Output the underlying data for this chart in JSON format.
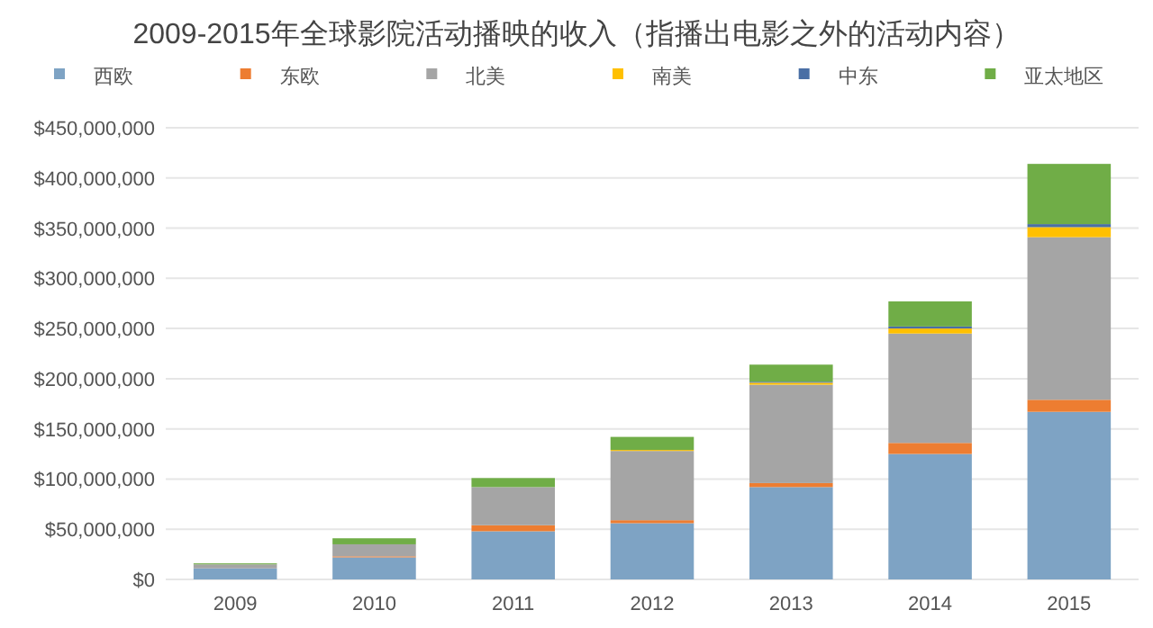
{
  "chart_data": {
    "type": "bar",
    "stacked": true,
    "title": "2009-2015年全球影院活动播映的收入（指播出电影之外的活动内容）",
    "categories": [
      "2009",
      "2010",
      "2011",
      "2012",
      "2013",
      "2014",
      "2015"
    ],
    "series": [
      {
        "name": "西欧",
        "color": "#7ea3c4",
        "values": [
          11000000,
          22000000,
          48000000,
          56000000,
          92000000,
          125000000,
          167000000
        ]
      },
      {
        "name": "东欧",
        "color": "#ed7d31",
        "values": [
          0,
          1000000,
          6000000,
          3000000,
          4000000,
          11000000,
          12000000
        ]
      },
      {
        "name": "北美",
        "color": "#a5a5a5",
        "values": [
          4000000,
          12000000,
          38000000,
          69000000,
          98000000,
          109000000,
          162000000
        ]
      },
      {
        "name": "南美",
        "color": "#ffc000",
        "values": [
          0,
          0,
          0,
          1000000,
          2000000,
          5000000,
          10000000
        ]
      },
      {
        "name": "中东",
        "color": "#4a6fa5",
        "values": [
          0,
          0,
          0,
          0,
          1000000,
          2000000,
          3000000
        ]
      },
      {
        "name": "亚太地区",
        "color": "#70ad47",
        "values": [
          1000000,
          6000000,
          9000000,
          13000000,
          17000000,
          25000000,
          60000000
        ]
      }
    ],
    "ylim": [
      0,
      450000000
    ],
    "yticks": [
      {
        "value": 0,
        "label": "$0"
      },
      {
        "value": 50000000,
        "label": "$50,000,000"
      },
      {
        "value": 100000000,
        "label": "$100,000,000"
      },
      {
        "value": 150000000,
        "label": "$150,000,000"
      },
      {
        "value": 200000000,
        "label": "$200,000,000"
      },
      {
        "value": 250000000,
        "label": "$250,000,000"
      },
      {
        "value": 300000000,
        "label": "$300,000,000"
      },
      {
        "value": 350000000,
        "label": "$350,000,000"
      },
      {
        "value": 400000000,
        "label": "$400,000,000"
      },
      {
        "value": 450000000,
        "label": "$450,000,000"
      }
    ],
    "grid": "y",
    "legend": "top"
  }
}
